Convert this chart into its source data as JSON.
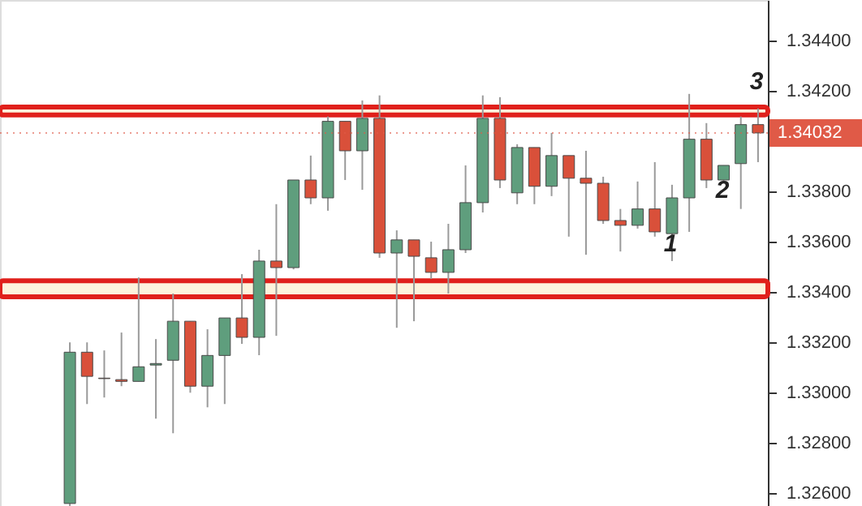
{
  "chart_data": {
    "type": "candlestick",
    "categories": [
      null,
      null,
      null,
      null,
      null,
      null,
      null,
      null,
      null,
      null,
      null,
      null,
      null,
      null,
      null,
      null,
      null,
      null,
      null,
      null,
      null,
      null,
      null,
      null,
      null,
      null,
      null,
      null,
      null,
      null,
      null,
      null,
      null,
      null,
      null,
      null,
      null,
      null,
      null,
      null,
      null
    ],
    "ohlc": [
      [
        1.3256,
        1.332,
        1.3255,
        1.33161
      ],
      [
        1.33161,
        1.332,
        1.32955,
        1.33065
      ],
      [
        1.33058,
        1.33168,
        1.32981,
        1.33056
      ],
      [
        1.33052,
        1.33239,
        1.33026,
        1.33045
      ],
      [
        1.33045,
        1.33458,
        1.33045,
        1.33103
      ],
      [
        1.3311,
        1.33213,
        1.32897,
        1.33116
      ],
      [
        1.33129,
        1.33394,
        1.32839,
        1.33284
      ],
      [
        1.33284,
        1.33284,
        1.33,
        1.33026
      ],
      [
        1.33026,
        1.33252,
        1.32942,
        1.33148
      ],
      [
        1.33148,
        1.33297,
        1.32955,
        1.33297
      ],
      [
        1.33297,
        1.33471,
        1.33194,
        1.3322
      ],
      [
        1.3322,
        1.33568,
        1.33149,
        1.33523
      ],
      [
        1.33523,
        1.33749,
        1.33226,
        1.33497
      ],
      [
        1.33497,
        1.33845,
        1.3349,
        1.33845
      ],
      [
        1.33845,
        1.33942,
        1.33749,
        1.33774
      ],
      [
        1.33774,
        1.34097,
        1.33723,
        1.34078
      ],
      [
        1.34078,
        1.34078,
        1.33845,
        1.33961
      ],
      [
        1.33961,
        1.34161,
        1.33806,
        1.3409
      ],
      [
        1.3409,
        1.34181,
        1.33536,
        1.33555
      ],
      [
        1.33555,
        1.33645,
        1.33258,
        1.33607
      ],
      [
        1.33607,
        1.33607,
        1.33284,
        1.33542
      ],
      [
        1.33536,
        1.336,
        1.33452,
        1.33478
      ],
      [
        1.33478,
        1.33671,
        1.33394,
        1.33568
      ],
      [
        1.33568,
        1.33903,
        1.33555,
        1.33755
      ],
      [
        1.33755,
        1.34181,
        1.33716,
        1.3409
      ],
      [
        1.3409,
        1.34174,
        1.33813,
        1.33845
      ],
      [
        1.33794,
        1.33987,
        1.33749,
        1.33974
      ],
      [
        1.33974,
        1.33974,
        1.33749,
        1.3382
      ],
      [
        1.3382,
        1.34032,
        1.33781,
        1.33942
      ],
      [
        1.33942,
        1.33942,
        1.3362,
        1.33852
      ],
      [
        1.33852,
        1.33961,
        1.33548,
        1.33832
      ],
      [
        1.33832,
        1.33858,
        1.33671,
        1.33684
      ],
      [
        1.33684,
        1.3373,
        1.33561,
        1.33665
      ],
      [
        1.33665,
        1.33839,
        1.33652,
        1.3373
      ],
      [
        1.3373,
        1.33916,
        1.3362,
        1.33639
      ],
      [
        1.33632,
        1.33826,
        1.33523,
        1.33774
      ],
      [
        1.33774,
        1.34187,
        1.33639,
        1.34007
      ],
      [
        1.34007,
        1.34071,
        1.33813,
        1.33845
      ],
      [
        1.33845,
        1.33903,
        1.33839,
        1.33903
      ],
      [
        1.3391,
        1.34097,
        1.3373,
        1.34065
      ],
      [
        1.34065,
        1.34129,
        1.33916,
        1.34032
      ]
    ],
    "colors": [
      "#5f9e7d",
      "#d9503a",
      "#d9503a",
      "#d9503a",
      "#5f9e7d",
      "#5f9e7d",
      "#5f9e7d",
      "#d9503a",
      "#5f9e7d",
      "#5f9e7d",
      "#d9503a",
      "#5f9e7d",
      "#d9503a",
      "#5f9e7d",
      "#d9503a",
      "#5f9e7d",
      "#d9503a",
      "#5f9e7d",
      "#d9503a",
      "#5f9e7d",
      "#d9503a",
      "#d9503a",
      "#5f9e7d",
      "#5f9e7d",
      "#5f9e7d",
      "#d9503a",
      "#5f9e7d",
      "#d9503a",
      "#5f9e7d",
      "#d9503a",
      "#d9503a",
      "#d9503a",
      "#d9503a",
      "#5f9e7d",
      "#d9503a",
      "#5f9e7d",
      "#5f9e7d",
      "#d9503a",
      "#5f9e7d",
      "#5f9e7d",
      "#d9503a"
    ],
    "ylim": [
      1.3255,
      1.3456
    ],
    "yticks": [
      {
        "value": 1.326,
        "label": "1.32600"
      },
      {
        "value": 1.328,
        "label": "1.32800"
      },
      {
        "value": 1.33,
        "label": "1.33000"
      },
      {
        "value": 1.332,
        "label": "1.33200"
      },
      {
        "value": 1.334,
        "label": "1.33400"
      },
      {
        "value": 1.336,
        "label": "1.33600"
      },
      {
        "value": 1.338,
        "label": "1.33800"
      },
      {
        "value": 1.342,
        "label": "1.34200"
      },
      {
        "value": 1.344,
        "label": "1.34400"
      }
    ],
    "bands": [
      {
        "axis": "y",
        "from": 1.33381,
        "to": 1.33445,
        "color": "#e0201b"
      },
      {
        "axis": "y",
        "from": 1.34103,
        "to": 1.34135,
        "color": "#e0201b"
      }
    ],
    "ref_lines": [
      {
        "axis": "y",
        "value": 1.34032,
        "label": "1.34032",
        "color": "#e05a47"
      }
    ],
    "annotations": [
      "1",
      "2",
      "3"
    ],
    "grid": false
  }
}
